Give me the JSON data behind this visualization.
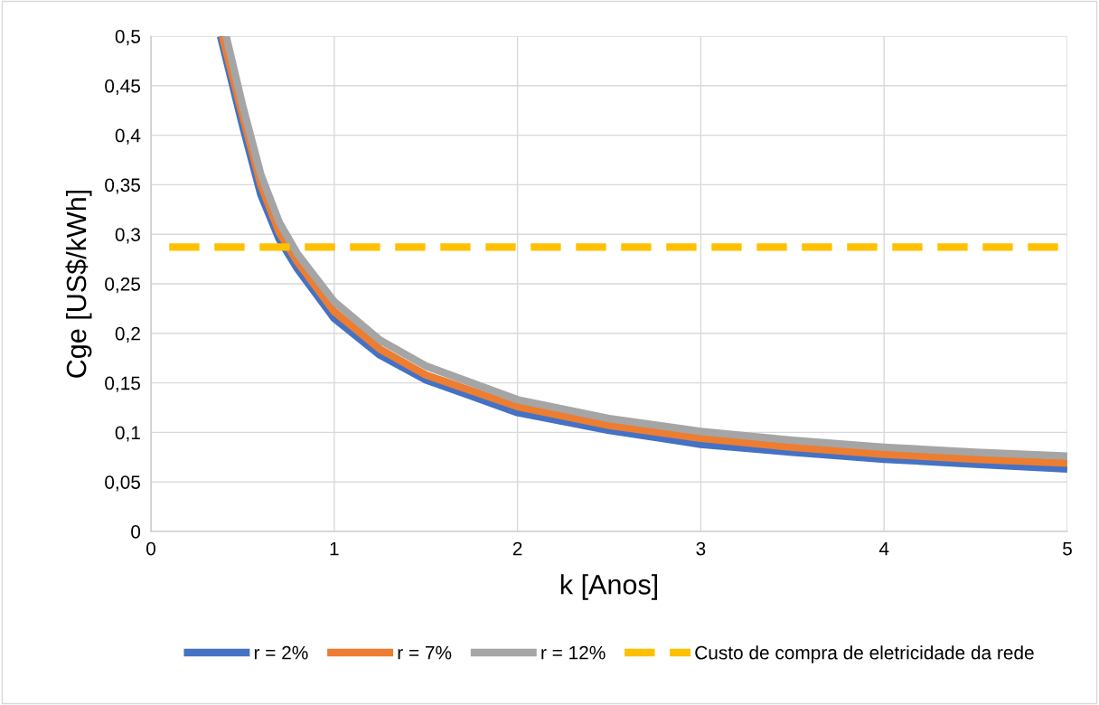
{
  "chart_data": {
    "type": "line",
    "xlabel": "k [Anos]",
    "ylabel": "Cge [US$/kWh]",
    "xlim": [
      0,
      5
    ],
    "xticks": [
      0,
      1,
      2,
      3,
      4,
      5
    ],
    "ylim": [
      0,
      0.5
    ],
    "yticks": [
      0,
      {
        "value": 0.05,
        "label": "0,05"
      },
      {
        "value": 0.1,
        "label": "0,1"
      },
      {
        "value": 0.15,
        "label": "0,15"
      },
      {
        "value": 0.2,
        "label": "0,2"
      },
      {
        "value": 0.25,
        "label": "0,25"
      },
      {
        "value": 0.3,
        "label": "0,3"
      },
      {
        "value": 0.35,
        "label": "0,35"
      },
      {
        "value": 0.4,
        "label": "0,4"
      },
      {
        "value": 0.45,
        "label": "0,45"
      },
      {
        "value": 0.5,
        "label": "0,5"
      }
    ],
    "grid": true,
    "legend": "bottom",
    "marker": "none",
    "series": [
      {
        "name": "r = 2%",
        "color": "#4472c4",
        "line_style": "solid",
        "x": [
          0.38,
          0.5,
          0.6,
          0.7,
          0.8,
          1,
          1.25,
          1.5,
          2,
          2.5,
          3,
          3.5,
          4,
          4.5,
          5
        ],
        "values": [
          0.5,
          0.41,
          0.34,
          0.295,
          0.265,
          0.215,
          0.178,
          0.153,
          0.12,
          0.102,
          0.088,
          0.08,
          0.073,
          0.068,
          0.063
        ]
      },
      {
        "name": "r = 7%",
        "color": "#ed7d31",
        "line_style": "solid",
        "x": [
          0.39,
          0.5,
          0.6,
          0.7,
          0.8,
          1,
          1.25,
          1.5,
          2,
          2.5,
          3,
          3.5,
          4,
          4.5,
          5
        ],
        "values": [
          0.5,
          0.42,
          0.35,
          0.302,
          0.272,
          0.222,
          0.184,
          0.158,
          0.126,
          0.107,
          0.094,
          0.085,
          0.078,
          0.073,
          0.069
        ]
      },
      {
        "name": "r = 12%",
        "color": "#a5a5a5",
        "line_style": "solid",
        "x": [
          0.41,
          0.5,
          0.6,
          0.7,
          0.8,
          1,
          1.25,
          1.5,
          2,
          2.5,
          3,
          3.5,
          4,
          4.5,
          5
        ],
        "values": [
          0.5,
          0.43,
          0.36,
          0.312,
          0.28,
          0.232,
          0.193,
          0.167,
          0.133,
          0.114,
          0.101,
          0.092,
          0.085,
          0.08,
          0.076
        ]
      },
      {
        "name": "Custo de compra de eletricidade da rede",
        "color": "#ffc000",
        "line_style": "dashed",
        "x": [
          0.1,
          5
        ],
        "values": [
          0.287,
          0.287
        ]
      }
    ]
  }
}
